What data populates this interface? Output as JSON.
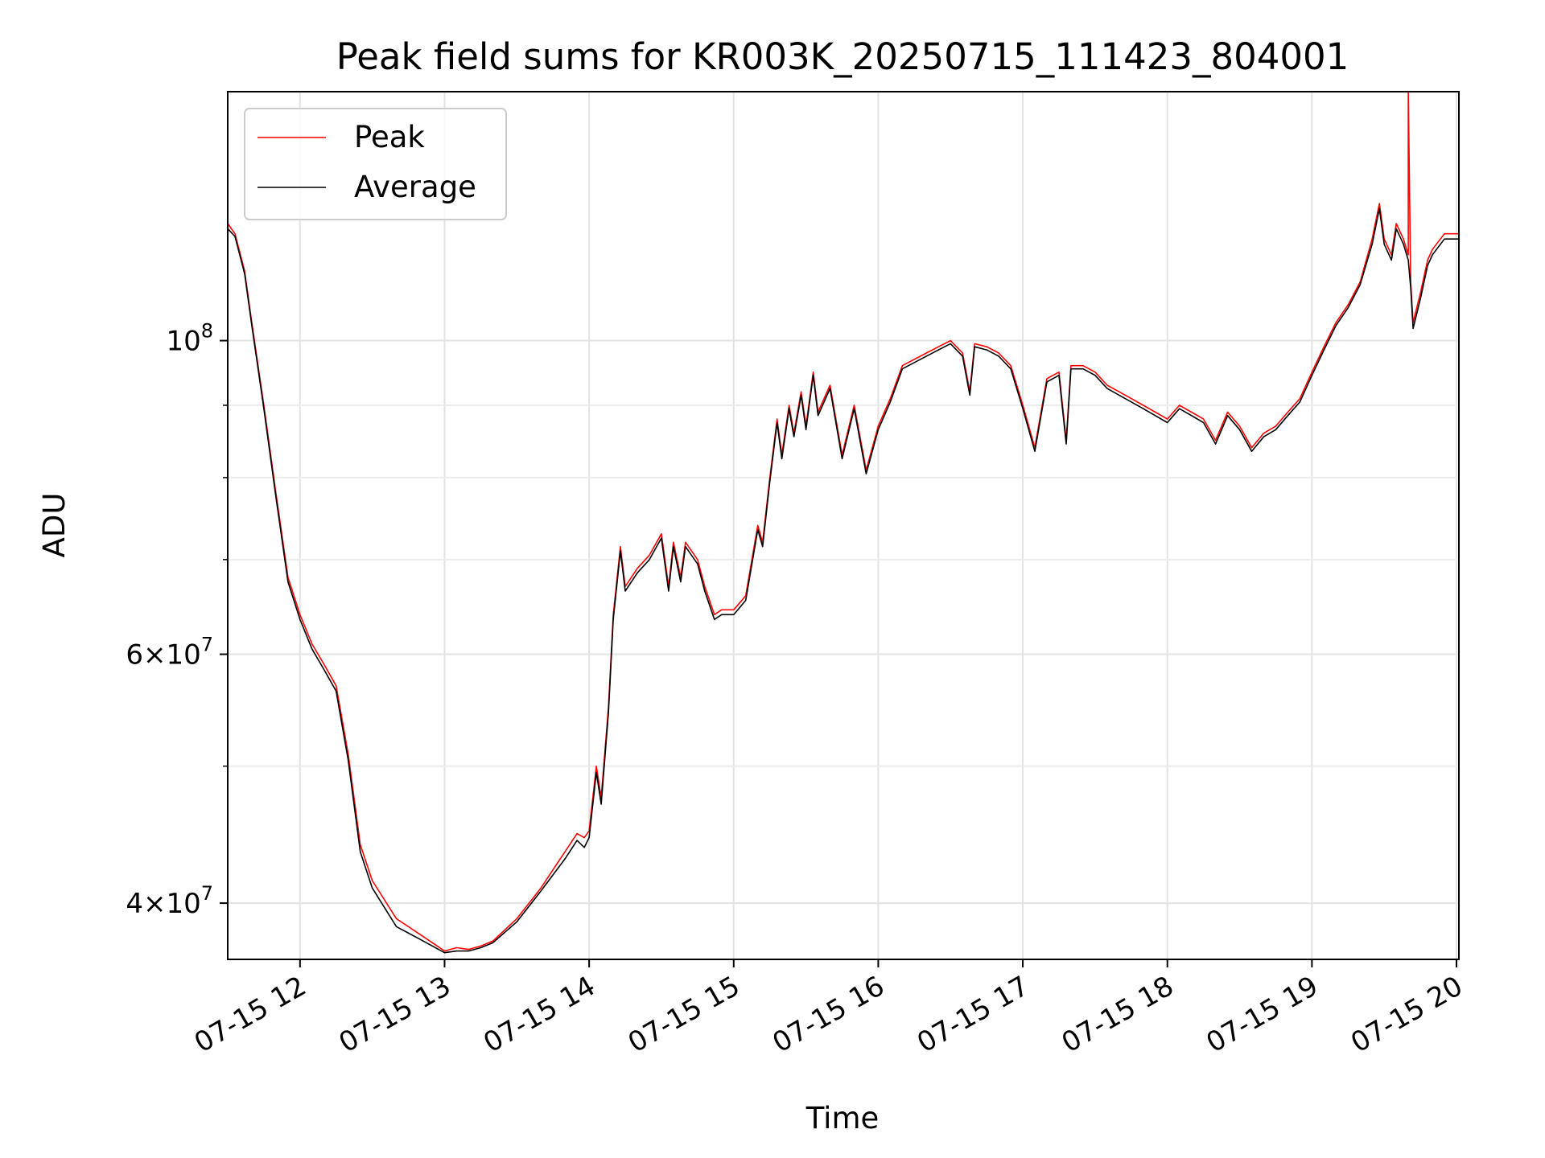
{
  "chart_data": {
    "type": "line",
    "title": "Peak field sums for KR003K_20250715_111423_804001",
    "xlabel": "Time",
    "ylabel": "ADU",
    "y_scale": "log",
    "ylim": [
      36500000,
      150000000
    ],
    "xlim": [
      "2025-07-15 11:30",
      "2025-07-15 20:01"
    ],
    "grid": true,
    "legend_position": "upper left",
    "x_ticks": [
      "07-15 12",
      "07-15 13",
      "07-15 14",
      "07-15 15",
      "07-15 16",
      "07-15 17",
      "07-15 18",
      "07-15 19",
      "07-15 20"
    ],
    "y_ticks": [
      {
        "value": 40000000,
        "mantissa": "4",
        "exponent": "7"
      },
      {
        "value": 60000000,
        "mantissa": "6",
        "exponent": "7"
      },
      {
        "value": 100000000,
        "mantissa": "",
        "exponent": "8"
      }
    ],
    "y_minor_ticks": [
      50000000,
      70000000,
      80000000,
      90000000
    ],
    "series": [
      {
        "name": "Peak",
        "color": "#ff0000",
        "x": [
          "2025-07-15 11:30",
          "2025-07-15 11:33",
          "2025-07-15 11:37",
          "2025-07-15 11:40",
          "2025-07-15 11:45",
          "2025-07-15 11:50",
          "2025-07-15 11:55",
          "2025-07-15 12:00",
          "2025-07-15 12:05",
          "2025-07-15 12:10",
          "2025-07-15 12:15",
          "2025-07-15 12:20",
          "2025-07-15 12:25",
          "2025-07-15 12:30",
          "2025-07-15 12:40",
          "2025-07-15 12:50",
          "2025-07-15 13:00",
          "2025-07-15 13:05",
          "2025-07-15 13:10",
          "2025-07-15 13:15",
          "2025-07-15 13:20",
          "2025-07-15 13:30",
          "2025-07-15 13:40",
          "2025-07-15 13:50",
          "2025-07-15 13:55",
          "2025-07-15 13:58",
          "2025-07-15 14:00",
          "2025-07-15 14:03",
          "2025-07-15 14:05",
          "2025-07-15 14:08",
          "2025-07-15 14:10",
          "2025-07-15 14:13",
          "2025-07-15 14:15",
          "2025-07-15 14:20",
          "2025-07-15 14:25",
          "2025-07-15 14:30",
          "2025-07-15 14:33",
          "2025-07-15 14:35",
          "2025-07-15 14:38",
          "2025-07-15 14:40",
          "2025-07-15 14:45",
          "2025-07-15 14:48",
          "2025-07-15 14:52",
          "2025-07-15 14:55",
          "2025-07-15 14:58",
          "2025-07-15 15:00",
          "2025-07-15 15:05",
          "2025-07-15 15:10",
          "2025-07-15 15:12",
          "2025-07-15 15:15",
          "2025-07-15 15:18",
          "2025-07-15 15:20",
          "2025-07-15 15:23",
          "2025-07-15 15:25",
          "2025-07-15 15:28",
          "2025-07-15 15:30",
          "2025-07-15 15:33",
          "2025-07-15 15:35",
          "2025-07-15 15:40",
          "2025-07-15 15:45",
          "2025-07-15 15:50",
          "2025-07-15 15:55",
          "2025-07-15 16:00",
          "2025-07-15 16:05",
          "2025-07-15 16:10",
          "2025-07-15 16:15",
          "2025-07-15 16:20",
          "2025-07-15 16:25",
          "2025-07-15 16:30",
          "2025-07-15 16:35",
          "2025-07-15 16:38",
          "2025-07-15 16:40",
          "2025-07-15 16:45",
          "2025-07-15 16:50",
          "2025-07-15 16:55",
          "2025-07-15 17:00",
          "2025-07-15 17:05",
          "2025-07-15 17:10",
          "2025-07-15 17:15",
          "2025-07-15 17:18",
          "2025-07-15 17:20",
          "2025-07-15 17:25",
          "2025-07-15 17:30",
          "2025-07-15 17:35",
          "2025-07-15 17:40",
          "2025-07-15 17:45",
          "2025-07-15 17:50",
          "2025-07-15 17:55",
          "2025-07-15 18:00",
          "2025-07-15 18:05",
          "2025-07-15 18:10",
          "2025-07-15 18:15",
          "2025-07-15 18:20",
          "2025-07-15 18:25",
          "2025-07-15 18:30",
          "2025-07-15 18:35",
          "2025-07-15 18:40",
          "2025-07-15 18:45",
          "2025-07-15 18:50",
          "2025-07-15 18:55",
          "2025-07-15 19:00",
          "2025-07-15 19:05",
          "2025-07-15 19:10",
          "2025-07-15 19:15",
          "2025-07-15 19:20",
          "2025-07-15 19:25",
          "2025-07-15 19:28",
          "2025-07-15 19:30",
          "2025-07-15 19:33",
          "2025-07-15 19:35",
          "2025-07-15 19:38",
          "2025-07-15 19:40",
          "2025-07-15 19:40",
          "2025-07-15 19:41",
          "2025-07-15 19:42",
          "2025-07-15 19:45",
          "2025-07-15 19:48",
          "2025-07-15 19:50",
          "2025-07-15 19:55",
          "2025-07-15 20:00",
          "2025-07-15 20:01"
        ],
        "values": [
          121000000,
          119000000,
          112000000,
          103000000,
          90000000,
          78000000,
          68000000,
          64000000,
          61000000,
          59000000,
          57000000,
          51000000,
          44000000,
          41500000,
          39000000,
          38000000,
          37000000,
          37200000,
          37100000,
          37300000,
          37600000,
          39000000,
          41000000,
          43500000,
          44800000,
          44500000,
          45000000,
          50000000,
          47500000,
          55000000,
          64000000,
          71500000,
          67000000,
          69000000,
          70500000,
          73000000,
          67000000,
          72000000,
          68000000,
          72000000,
          70000000,
          67000000,
          64000000,
          64500000,
          64500000,
          64500000,
          66000000,
          74000000,
          72000000,
          80000000,
          88000000,
          83000000,
          90000000,
          86000000,
          92000000,
          87000000,
          95000000,
          89000000,
          93000000,
          83000000,
          90000000,
          81000000,
          87000000,
          91000000,
          96000000,
          97000000,
          98000000,
          99000000,
          100000000,
          98000000,
          92000000,
          99500000,
          99000000,
          98000000,
          96000000,
          90000000,
          84000000,
          94000000,
          95000000,
          85000000,
          96000000,
          96000000,
          95000000,
          93000000,
          92000000,
          91000000,
          90000000,
          89000000,
          88000000,
          90000000,
          89000000,
          88000000,
          85000000,
          89000000,
          87000000,
          84000000,
          86000000,
          87000000,
          89000000,
          91000000,
          95000000,
          99000000,
          103000000,
          106000000,
          110000000,
          118000000,
          125000000,
          118000000,
          115000000,
          121000000,
          118000000,
          115000000,
          150000000,
          110000000,
          103000000,
          108000000,
          114000000,
          116000000,
          119000000,
          119000000,
          119000000
        ]
      },
      {
        "name": "Average",
        "color": "#000000",
        "x": [
          "2025-07-15 11:30",
          "2025-07-15 11:33",
          "2025-07-15 11:37",
          "2025-07-15 11:40",
          "2025-07-15 11:45",
          "2025-07-15 11:50",
          "2025-07-15 11:55",
          "2025-07-15 12:00",
          "2025-07-15 12:05",
          "2025-07-15 12:10",
          "2025-07-15 12:15",
          "2025-07-15 12:20",
          "2025-07-15 12:25",
          "2025-07-15 12:30",
          "2025-07-15 12:40",
          "2025-07-15 12:50",
          "2025-07-15 13:00",
          "2025-07-15 13:05",
          "2025-07-15 13:10",
          "2025-07-15 13:15",
          "2025-07-15 13:20",
          "2025-07-15 13:30",
          "2025-07-15 13:40",
          "2025-07-15 13:50",
          "2025-07-15 13:55",
          "2025-07-15 13:58",
          "2025-07-15 14:00",
          "2025-07-15 14:03",
          "2025-07-15 14:05",
          "2025-07-15 14:08",
          "2025-07-15 14:10",
          "2025-07-15 14:13",
          "2025-07-15 14:15",
          "2025-07-15 14:20",
          "2025-07-15 14:25",
          "2025-07-15 14:30",
          "2025-07-15 14:33",
          "2025-07-15 14:35",
          "2025-07-15 14:38",
          "2025-07-15 14:40",
          "2025-07-15 14:45",
          "2025-07-15 14:48",
          "2025-07-15 14:52",
          "2025-07-15 14:55",
          "2025-07-15 14:58",
          "2025-07-15 15:00",
          "2025-07-15 15:05",
          "2025-07-15 15:10",
          "2025-07-15 15:12",
          "2025-07-15 15:15",
          "2025-07-15 15:18",
          "2025-07-15 15:20",
          "2025-07-15 15:23",
          "2025-07-15 15:25",
          "2025-07-15 15:28",
          "2025-07-15 15:30",
          "2025-07-15 15:33",
          "2025-07-15 15:35",
          "2025-07-15 15:40",
          "2025-07-15 15:45",
          "2025-07-15 15:50",
          "2025-07-15 15:55",
          "2025-07-15 16:00",
          "2025-07-15 16:05",
          "2025-07-15 16:10",
          "2025-07-15 16:15",
          "2025-07-15 16:20",
          "2025-07-15 16:25",
          "2025-07-15 16:30",
          "2025-07-15 16:35",
          "2025-07-15 16:38",
          "2025-07-15 16:40",
          "2025-07-15 16:45",
          "2025-07-15 16:50",
          "2025-07-15 16:55",
          "2025-07-15 17:00",
          "2025-07-15 17:05",
          "2025-07-15 17:10",
          "2025-07-15 17:15",
          "2025-07-15 17:18",
          "2025-07-15 17:20",
          "2025-07-15 17:25",
          "2025-07-15 17:30",
          "2025-07-15 17:35",
          "2025-07-15 17:40",
          "2025-07-15 17:45",
          "2025-07-15 17:50",
          "2025-07-15 17:55",
          "2025-07-15 18:00",
          "2025-07-15 18:05",
          "2025-07-15 18:10",
          "2025-07-15 18:15",
          "2025-07-15 18:20",
          "2025-07-15 18:25",
          "2025-07-15 18:30",
          "2025-07-15 18:35",
          "2025-07-15 18:40",
          "2025-07-15 18:45",
          "2025-07-15 18:50",
          "2025-07-15 18:55",
          "2025-07-15 19:00",
          "2025-07-15 19:05",
          "2025-07-15 19:10",
          "2025-07-15 19:15",
          "2025-07-15 19:20",
          "2025-07-15 19:25",
          "2025-07-15 19:28",
          "2025-07-15 19:30",
          "2025-07-15 19:33",
          "2025-07-15 19:35",
          "2025-07-15 19:38",
          "2025-07-15 19:40",
          "2025-07-15 19:40",
          "2025-07-15 19:41",
          "2025-07-15 19:42",
          "2025-07-15 19:45",
          "2025-07-15 19:48",
          "2025-07-15 19:50",
          "2025-07-15 19:55",
          "2025-07-15 20:00",
          "2025-07-15 20:01"
        ],
        "values": [
          120000000,
          118500000,
          111500000,
          102500000,
          89500000,
          77500000,
          67500000,
          63500000,
          60500000,
          58500000,
          56500000,
          50500000,
          43500000,
          41000000,
          38500000,
          37700000,
          36900000,
          37000000,
          37000000,
          37200000,
          37500000,
          38800000,
          40800000,
          43000000,
          44300000,
          43800000,
          44500000,
          49500000,
          47000000,
          54500000,
          63500000,
          71000000,
          66500000,
          68500000,
          70000000,
          72500000,
          66500000,
          71500000,
          67500000,
          71500000,
          69500000,
          66500000,
          63500000,
          64000000,
          64000000,
          64000000,
          65500000,
          73500000,
          71500000,
          79500000,
          87500000,
          82500000,
          89500000,
          85500000,
          91500000,
          86500000,
          94500000,
          88500000,
          92500000,
          82500000,
          89500000,
          80500000,
          86500000,
          90500000,
          95500000,
          96500000,
          97500000,
          98500000,
          99500000,
          97500000,
          91500000,
          99000000,
          98500000,
          97500000,
          95500000,
          89500000,
          83500000,
          93500000,
          94500000,
          84500000,
          95500000,
          95500000,
          94500000,
          92500000,
          91500000,
          90500000,
          89500000,
          88500000,
          87500000,
          89500000,
          88500000,
          87500000,
          84500000,
          88500000,
          86500000,
          83500000,
          85500000,
          86500000,
          88500000,
          90500000,
          94500000,
          98500000,
          102500000,
          105500000,
          109500000,
          117000000,
          124000000,
          117000000,
          114000000,
          120000000,
          117000000,
          114000000,
          114000000,
          109000000,
          102000000,
          107000000,
          113000000,
          115000000,
          118000000,
          118000000,
          118000000
        ]
      }
    ]
  }
}
